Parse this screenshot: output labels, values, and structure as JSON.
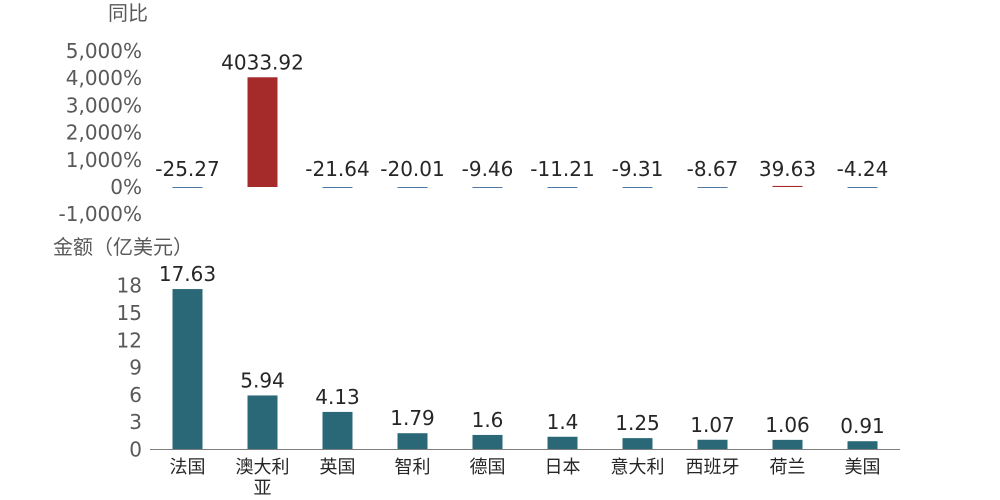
{
  "chart_data": [
    {
      "type": "bar",
      "ylabel": "同比",
      "ylim": [
        -1000,
        5000
      ],
      "yticks": [
        "5,000%",
        "4,000%",
        "3,000%",
        "2,000%",
        "1,000%",
        "0%",
        "-1,000%"
      ],
      "ytick_values": [
        5000,
        4000,
        3000,
        2000,
        1000,
        0,
        -1000
      ],
      "categories": [
        "法国",
        "澳大利亚",
        "英国",
        "智利",
        "德国",
        "日本",
        "意大利",
        "西班牙",
        "荷兰",
        "美国"
      ],
      "values": [
        -25.27,
        4033.92,
        -21.64,
        -20.01,
        -9.46,
        -11.21,
        -9.31,
        -8.67,
        39.63,
        -4.24
      ],
      "value_labels": [
        "-25.27",
        "4033.92",
        "-21.64",
        "-20.01",
        "-9.46",
        "-11.21",
        "-9.31",
        "-8.67",
        "39.63",
        "-4.24"
      ],
      "colors": {
        "positive": "#A52A2A",
        "negative": "#4E79A7"
      },
      "grid": false
    },
    {
      "type": "bar",
      "ylabel": "金额（亿美元）",
      "ylim": [
        0,
        19
      ],
      "yticks": [
        "18",
        "15",
        "12",
        "9",
        "6",
        "3",
        "0"
      ],
      "ytick_values": [
        18,
        15,
        12,
        9,
        6,
        3,
        0
      ],
      "categories": [
        "法国",
        "澳大利亚",
        "英国",
        "智利",
        "德国",
        "日本",
        "意大利",
        "西班牙",
        "荷兰",
        "美国"
      ],
      "category_labels": [
        [
          "法国"
        ],
        [
          "澳大利",
          "亚"
        ],
        [
          "英国"
        ],
        [
          "智利"
        ],
        [
          "德国"
        ],
        [
          "日本"
        ],
        [
          "意大利"
        ],
        [
          "西班牙"
        ],
        [
          "荷兰"
        ],
        [
          "美国"
        ]
      ],
      "values": [
        17.63,
        5.94,
        4.13,
        1.79,
        1.6,
        1.4,
        1.25,
        1.07,
        1.06,
        0.91
      ],
      "value_labels": [
        "17.63",
        "5.94",
        "4.13",
        "1.79",
        "1.6",
        "1.4",
        "1.25",
        "1.07",
        "1.06",
        "0.91"
      ],
      "colors": {
        "bar": "#2A6877",
        "axis": "#7F7F7F"
      },
      "grid": false
    }
  ]
}
